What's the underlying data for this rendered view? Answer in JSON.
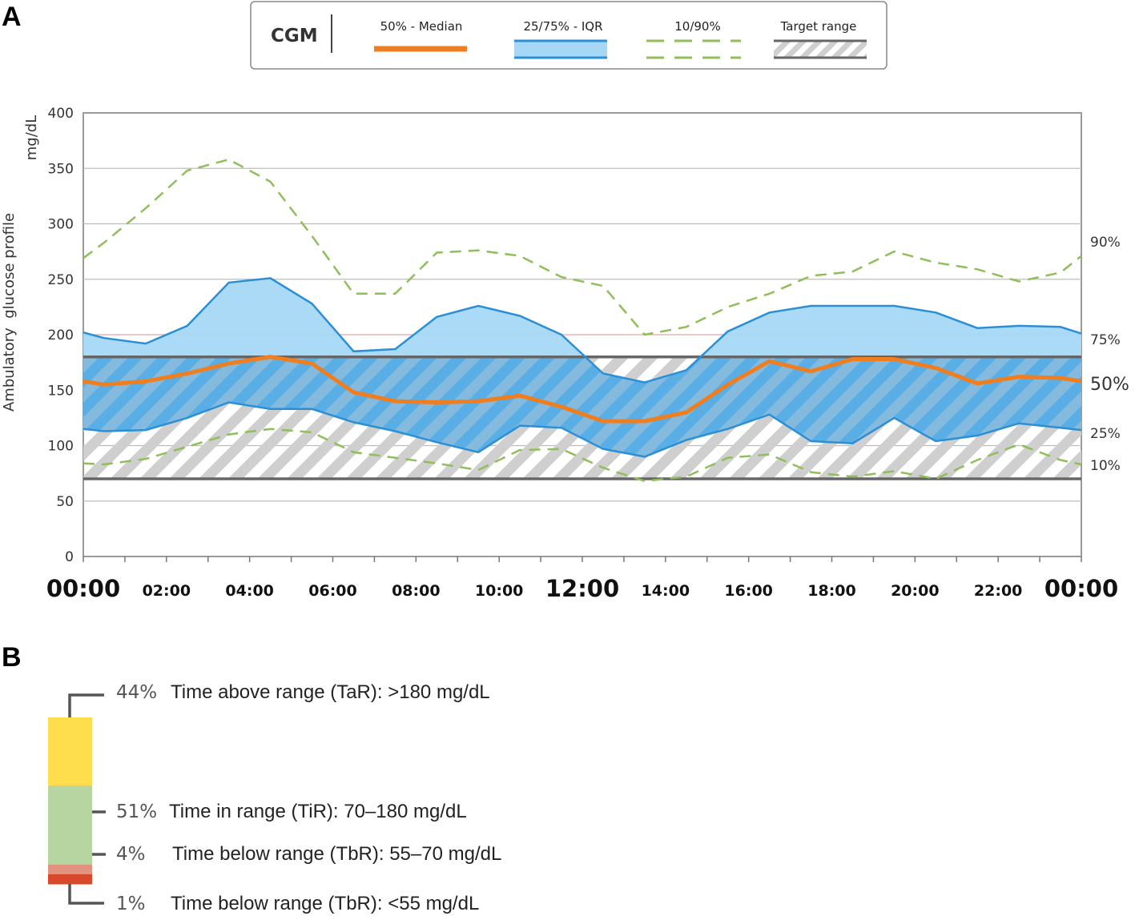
{
  "panels": {
    "a": "A",
    "b": "B"
  },
  "legend": {
    "title": "CGM",
    "items": [
      {
        "label": "50% - Median",
        "kind": "median"
      },
      {
        "label": "25/75% - IQR",
        "kind": "iqr"
      },
      {
        "label": "10/90%",
        "kind": "dashed"
      },
      {
        "label": "Target range",
        "kind": "target"
      }
    ]
  },
  "colors": {
    "median": "#f07d1e",
    "iqr_fill": "#a6d8f5",
    "iqr_line": "#2a8fd6",
    "target_band": "#1f7fc4",
    "percentile_dash": "#8fbe5a",
    "target_stripe": "#cfcfcf",
    "tar": "#ffde4d",
    "tir": "#b7d5a0",
    "tbr1": "#e0937f",
    "tbr2": "#d9482b"
  },
  "chart_data": [
    {
      "type": "line",
      "title": "",
      "ylabel": "Ambulatory  glucose profile",
      "yunit": "mg/dL",
      "xlabel": "",
      "ylim": [
        0,
        400
      ],
      "yticks": [
        "0",
        "50",
        "100",
        "150",
        "200",
        "250",
        "300",
        "350",
        "400"
      ],
      "xticks": [
        "00:00",
        "02:00",
        "04:00",
        "06:00",
        "08:00",
        "10:00",
        "12:00",
        "14:00",
        "16:00",
        "18:00",
        "20:00",
        "22:00",
        "00:00"
      ],
      "target_range": [
        70,
        180
      ],
      "x": [
        "00:00",
        "00:30",
        "01:30",
        "02:30",
        "03:30",
        "04:30",
        "05:30",
        "06:30",
        "07:30",
        "08:30",
        "09:30",
        "10:30",
        "11:30",
        "12:30",
        "13:30",
        "14:30",
        "15:30",
        "16:30",
        "17:30",
        "18:30",
        "19:30",
        "20:30",
        "21:30",
        "22:30",
        "23:30",
        "24:00"
      ],
      "series": [
        {
          "name": "90%",
          "values": [
            269,
            283,
            314,
            348,
            358,
            338,
            289,
            237,
            237,
            274,
            276,
            271,
            252,
            244,
            200,
            207,
            225,
            237,
            253,
            257,
            275,
            265,
            259,
            248,
            256,
            271
          ]
        },
        {
          "name": "75%",
          "values": [
            202,
            197,
            192,
            208,
            247,
            251,
            228,
            185,
            187,
            216,
            226,
            217,
            200,
            165,
            157,
            168,
            203,
            220,
            226,
            226,
            226,
            220,
            206,
            208,
            207,
            201
          ]
        },
        {
          "name": "50%",
          "values": [
            158,
            155,
            158,
            165,
            174,
            180,
            174,
            148,
            140,
            139,
            140,
            145,
            135,
            122,
            122,
            130,
            155,
            176,
            167,
            178,
            178,
            170,
            156,
            162,
            161,
            158
          ]
        },
        {
          "name": "25%",
          "values": [
            115,
            113,
            114,
            125,
            139,
            133,
            133,
            121,
            113,
            103,
            94,
            118,
            116,
            97,
            90,
            105,
            115,
            128,
            104,
            102,
            125,
            104,
            109,
            120,
            116,
            114
          ]
        },
        {
          "name": "10%",
          "values": [
            84,
            83,
            88,
            99,
            110,
            115,
            112,
            94,
            89,
            84,
            78,
            96,
            97,
            80,
            68,
            72,
            89,
            92,
            76,
            72,
            77,
            70,
            87,
            101,
            87,
            83
          ]
        }
      ],
      "right_labels": [
        "90%",
        "75%",
        "50%",
        "25%",
        "10%"
      ]
    },
    {
      "type": "bar",
      "title": "",
      "stacked": true,
      "categories": [
        "Time above range (TaR):",
        "Time in range (TiR):",
        "Time below range (TbR):",
        "Time below range (TbR):"
      ],
      "values": [
        44,
        51,
        4,
        1
      ],
      "ranges": [
        ">180 mg/dL",
        "70–180 mg/dL",
        "55–70 mg/dL",
        "<55 mg/dL"
      ],
      "labels": [
        "44%",
        "51%",
        "4%",
        "1%"
      ]
    }
  ]
}
